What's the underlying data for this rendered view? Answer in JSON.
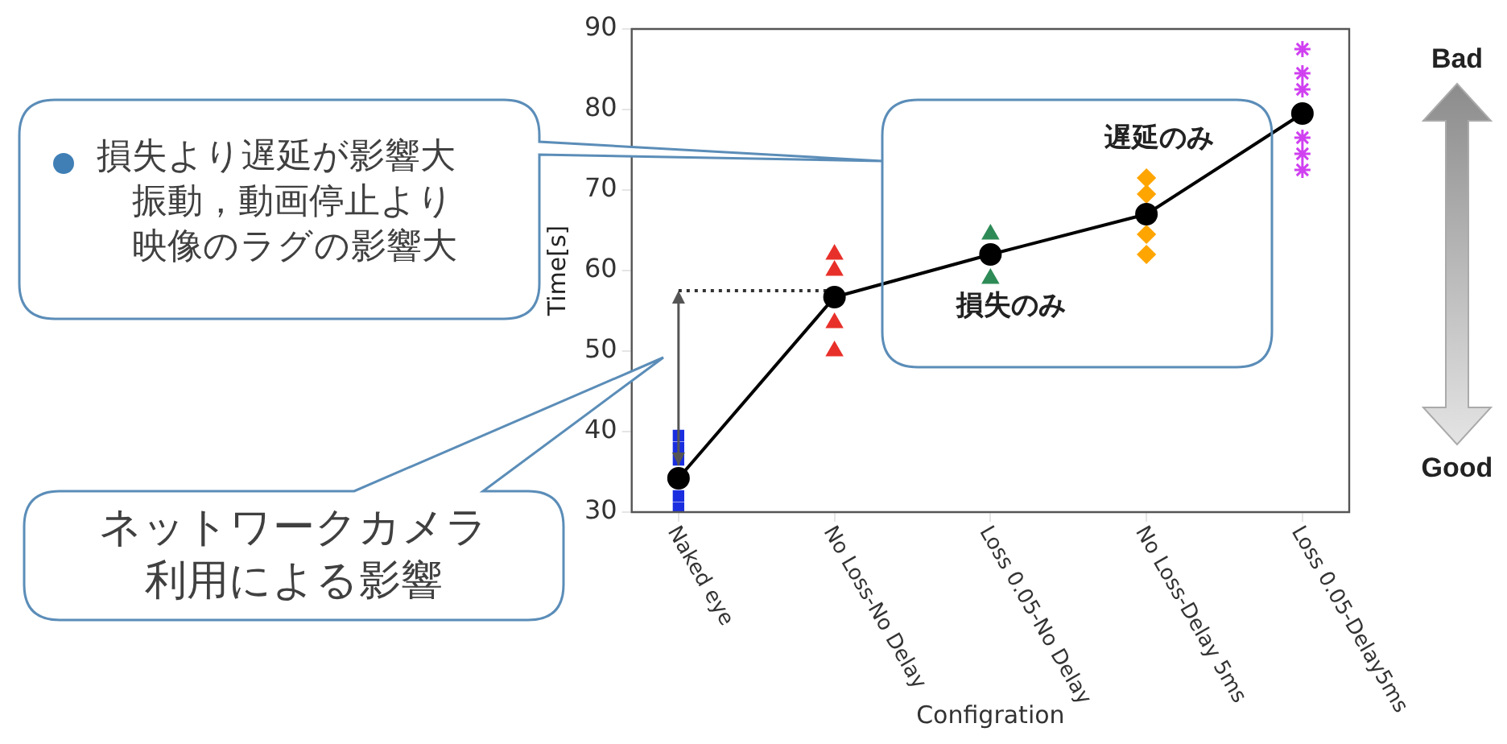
{
  "chart_data": {
    "type": "scatter",
    "xlabel": "Configration",
    "ylabel": "Time[s]",
    "categories": [
      "Naked eye",
      "No Loss-No Delay",
      "Loss 0.05-No Delay",
      "No Loss-Delay 5ms",
      "Loss 0.05-Delay5ms"
    ],
    "ylim": [
      30,
      90
    ],
    "yticks": [
      30,
      40,
      50,
      60,
      70,
      80,
      90
    ],
    "grid": false,
    "series": [
      {
        "type": "scatter",
        "color": "#1a2ee0",
        "marker": "square",
        "x": [
          "Naked eye",
          "Naked eye",
          "Naked eye",
          "Naked eye",
          "Naked eye"
        ],
        "values": [
          30.5,
          32,
          36.5,
          38,
          39.5
        ]
      },
      {
        "type": "scatter",
        "color": "#e8302a",
        "marker": "triangle",
        "x": [
          "No Loss-No Delay",
          "No Loss-No Delay",
          "No Loss-No Delay",
          "No Loss-No Delay"
        ],
        "values": [
          50,
          53.5,
          60,
          62
        ]
      },
      {
        "type": "scatter",
        "color": "#2e8b57",
        "marker": "triangle",
        "x": [
          "Loss 0.05-No Delay",
          "Loss 0.05-No Delay"
        ],
        "values": [
          59,
          64.5
        ]
      },
      {
        "type": "scatter",
        "color": "#ffa500",
        "marker": "diamond",
        "x": [
          "No Loss-Delay 5ms",
          "No Loss-Delay 5ms",
          "No Loss-Delay 5ms",
          "No Loss-Delay 5ms"
        ],
        "values": [
          62,
          64.5,
          69.5,
          71.5
        ]
      },
      {
        "type": "scatter",
        "color": "#d040f0",
        "marker": "cross",
        "x": [
          "Loss 0.05-Delay5ms",
          "Loss 0.05-Delay5ms",
          "Loss 0.05-Delay5ms",
          "Loss 0.05-Delay5ms",
          "Loss 0.05-Delay5ms",
          "Loss 0.05-Delay5ms"
        ],
        "values": [
          72.5,
          74.5,
          76.5,
          82.5,
          84.5,
          87.5
        ]
      },
      {
        "type": "line",
        "color": "#000000",
        "marker": "circle",
        "line_style": "solid",
        "values": [
          34.2,
          56.7,
          62,
          67,
          79.5
        ]
      },
      {
        "type": "line",
        "color": "#333333",
        "marker": "none",
        "line_style": "dotted",
        "x": [
          "Naked eye",
          "No Loss-No Delay"
        ],
        "values": [
          57.5,
          57.5
        ]
      }
    ],
    "annotations": [
      "損失より遅延が影響大",
      "振動，動画停止より映像のラグの影響大",
      "ネットワークカメラ利用による影響",
      "Bad",
      "Good",
      "遅延のみ",
      "損失のみ"
    ]
  }
}
